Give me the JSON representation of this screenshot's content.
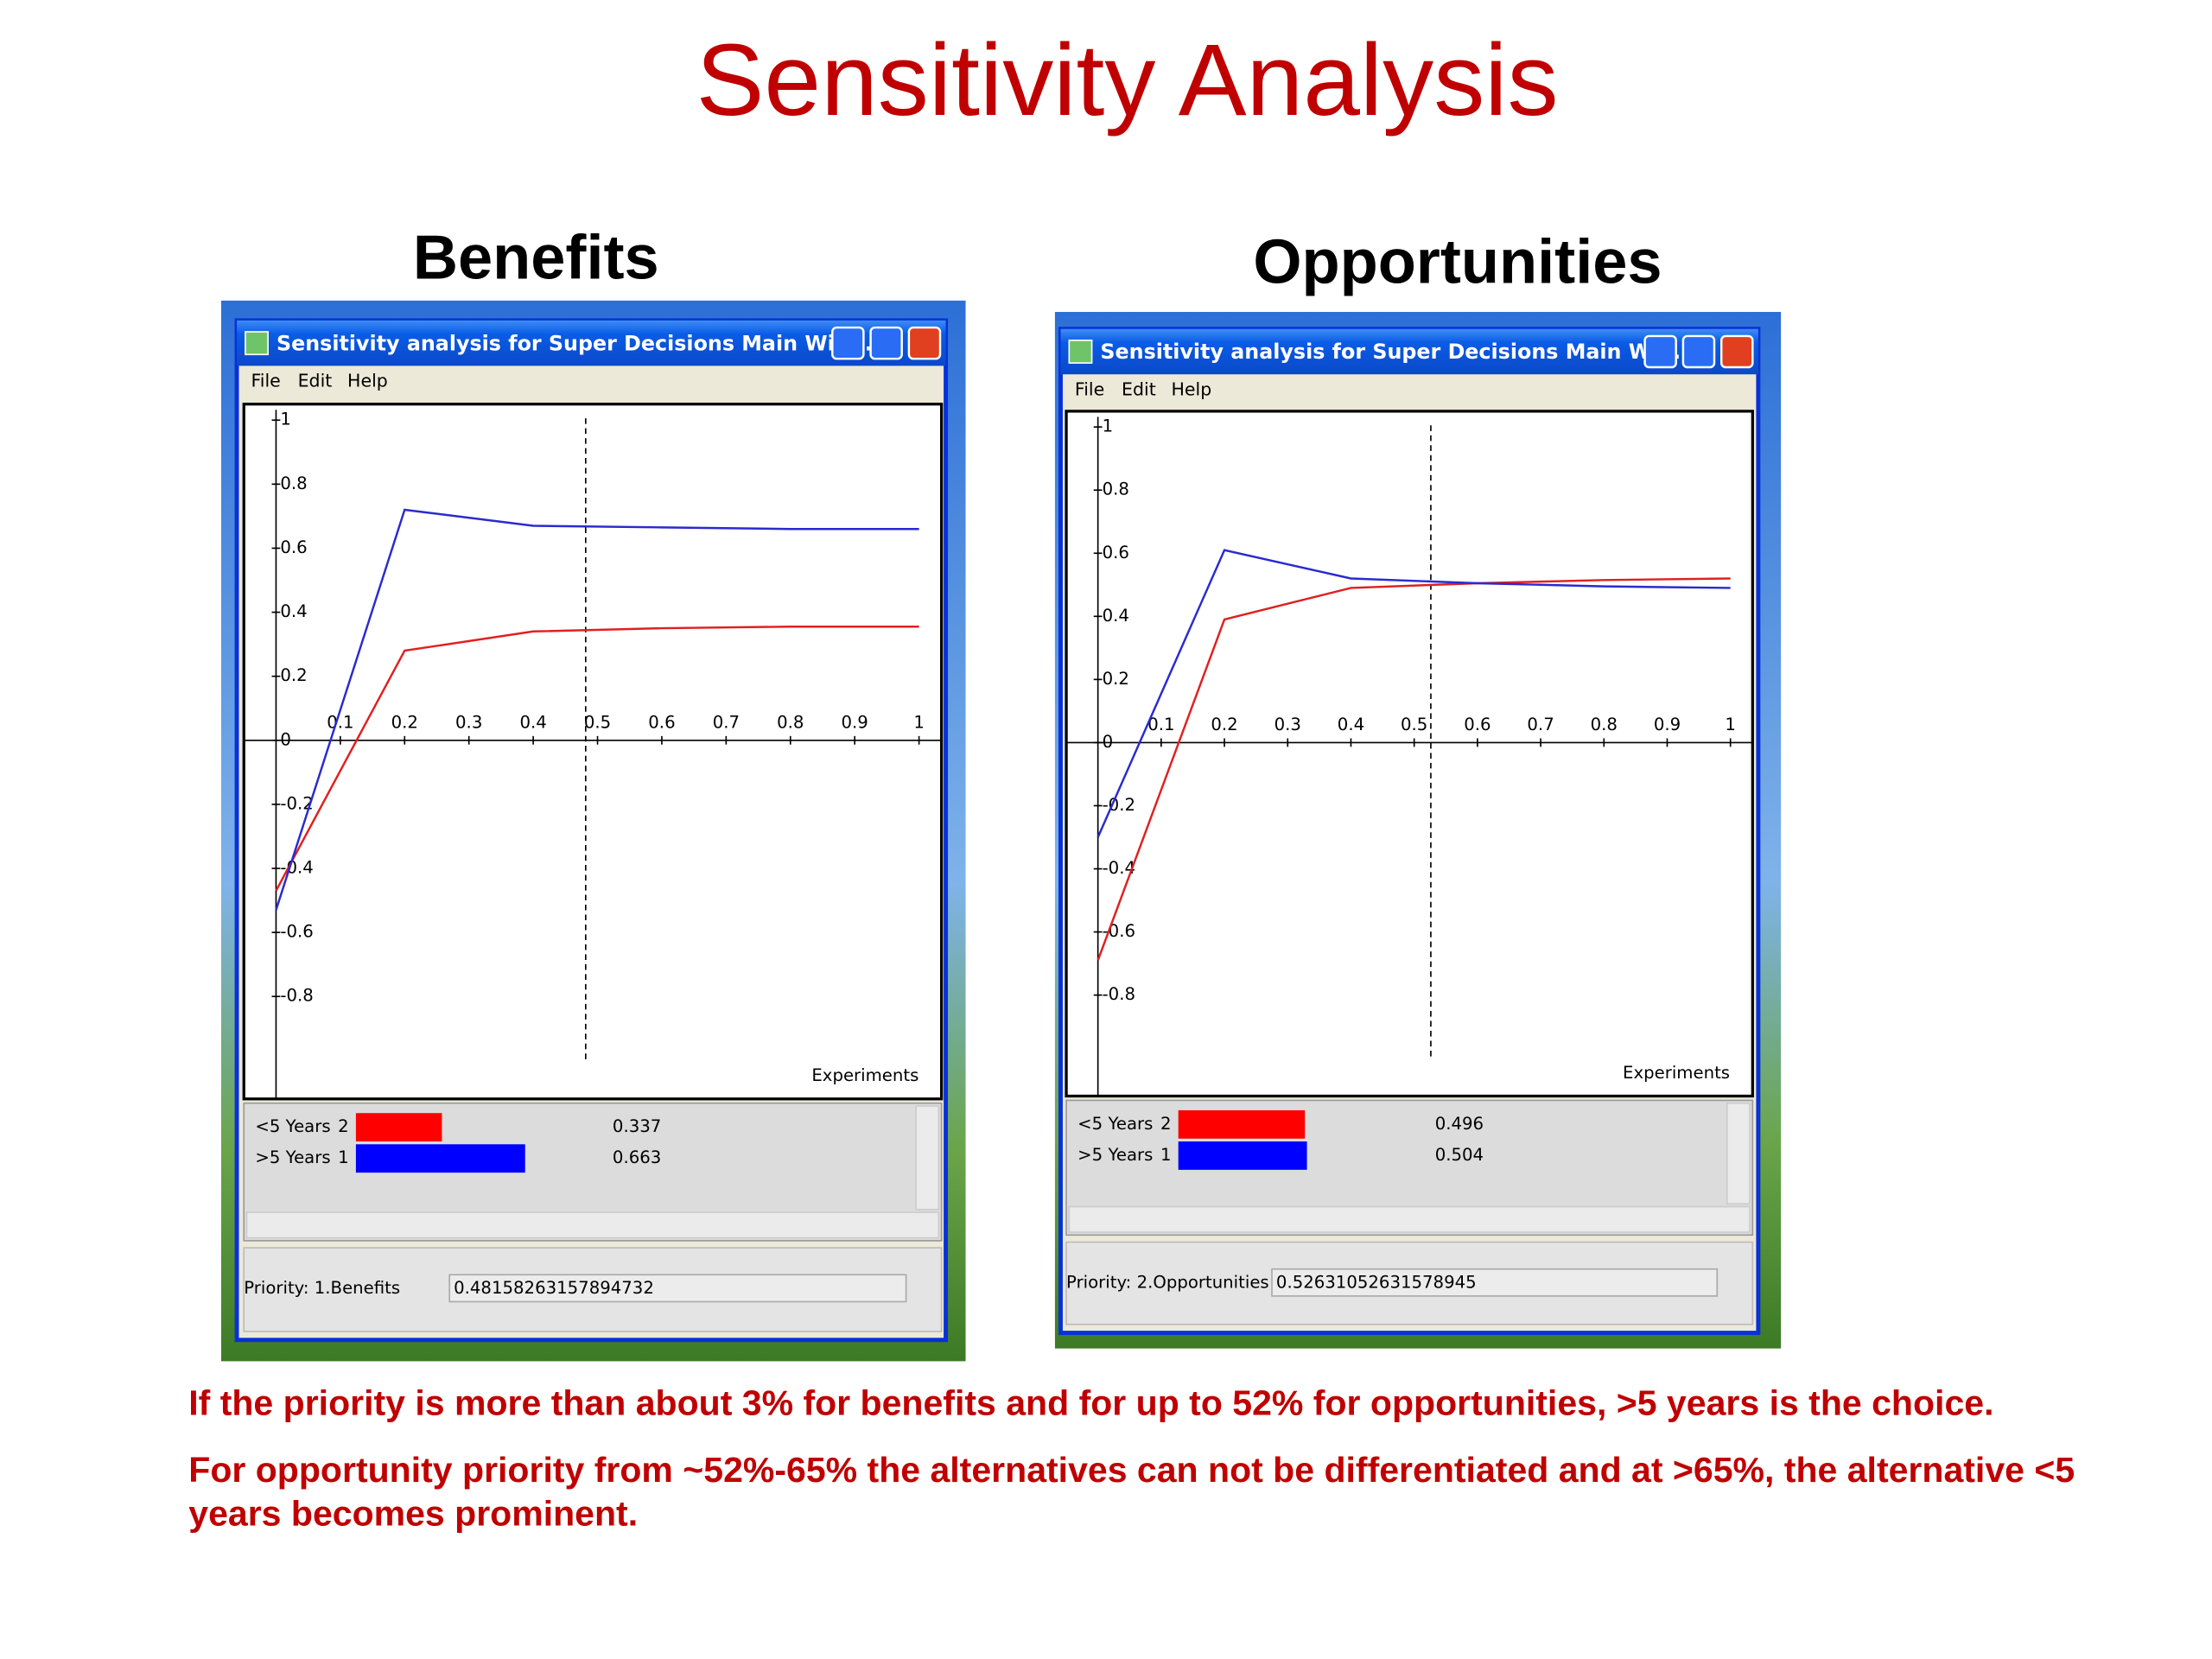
{
  "title": "Sensitivity Analysis",
  "panels": [
    {
      "heading": "Benefits",
      "window_title": "Sensitivity analysis for Super Decisions Main Win...",
      "menu": [
        "File",
        "Edit",
        "Help"
      ],
      "priority_label": "Priority: 1.Benefits",
      "priority_value": "0.48158263157894732"
    },
    {
      "heading": "Opportunities",
      "window_title": "Sensitivity analysis for Super Decisions Main Win...",
      "menu": [
        "File",
        "Edit",
        "Help"
      ],
      "priority_label": "Priority: 2.Opportunities",
      "priority_value": "0.52631052631578945"
    }
  ],
  "chart_data": [
    {
      "type": "line",
      "x_label": "Experiments",
      "x": [
        0,
        0.2,
        0.4,
        0.6,
        0.8,
        1
      ],
      "series": [
        {
          "name": "<5 Years",
          "rank": 2,
          "current": 0.337,
          "color": "#e02020",
          "bar_color": "#ff0000",
          "values": [
            -0.47,
            0.28,
            0.34,
            0.35,
            0.355,
            0.355
          ]
        },
        {
          "name": ">5 Years",
          "rank": 1,
          "current": 0.663,
          "color": "#2a2ad0",
          "bar_color": "#0000ff",
          "values": [
            -0.53,
            0.72,
            0.67,
            0.665,
            0.66,
            0.66
          ]
        }
      ],
      "xlim": [
        -0.05,
        1.035
      ],
      "ylim": [
        -1.12,
        1.05
      ],
      "xticks": [
        0.1,
        0.2,
        0.3,
        0.4,
        0.5,
        0.6,
        0.7,
        0.8,
        0.9,
        1
      ],
      "yticks": [
        -0.8,
        -0.6,
        -0.4,
        -0.2,
        0,
        0.2,
        0.4,
        0.6,
        0.8,
        1
      ]
    },
    {
      "type": "line",
      "x_label": "Experiments",
      "x": [
        0,
        0.2,
        0.4,
        0.6,
        0.8,
        1
      ],
      "series": [
        {
          "name": "<5 Years",
          "rank": 2,
          "current": 0.496,
          "color": "#e02020",
          "bar_color": "#ff0000",
          "values": [
            -0.69,
            0.39,
            0.49,
            0.505,
            0.515,
            0.52
          ]
        },
        {
          "name": ">5 Years",
          "rank": 1,
          "current": 0.504,
          "color": "#2a2ad0",
          "bar_color": "#0000ff",
          "values": [
            -0.3,
            0.61,
            0.52,
            0.505,
            0.495,
            0.49
          ]
        }
      ],
      "xlim": [
        -0.05,
        1.035
      ],
      "ylim": [
        -1.12,
        1.05
      ],
      "xticks": [
        0.1,
        0.2,
        0.3,
        0.4,
        0.5,
        0.6,
        0.7,
        0.8,
        0.9,
        1
      ],
      "yticks": [
        -0.8,
        -0.6,
        -0.4,
        -0.2,
        0,
        0.2,
        0.4,
        0.6,
        0.8,
        1
      ]
    }
  ],
  "notes": [
    "If the priority is more than about 3% for benefits and for up to 52% for opportunities, >5 years is the choice.",
    "For opportunity priority from ~52%-65% the alternatives can not be differentiated and at >65%, the alternative <5 years becomes prominent."
  ]
}
